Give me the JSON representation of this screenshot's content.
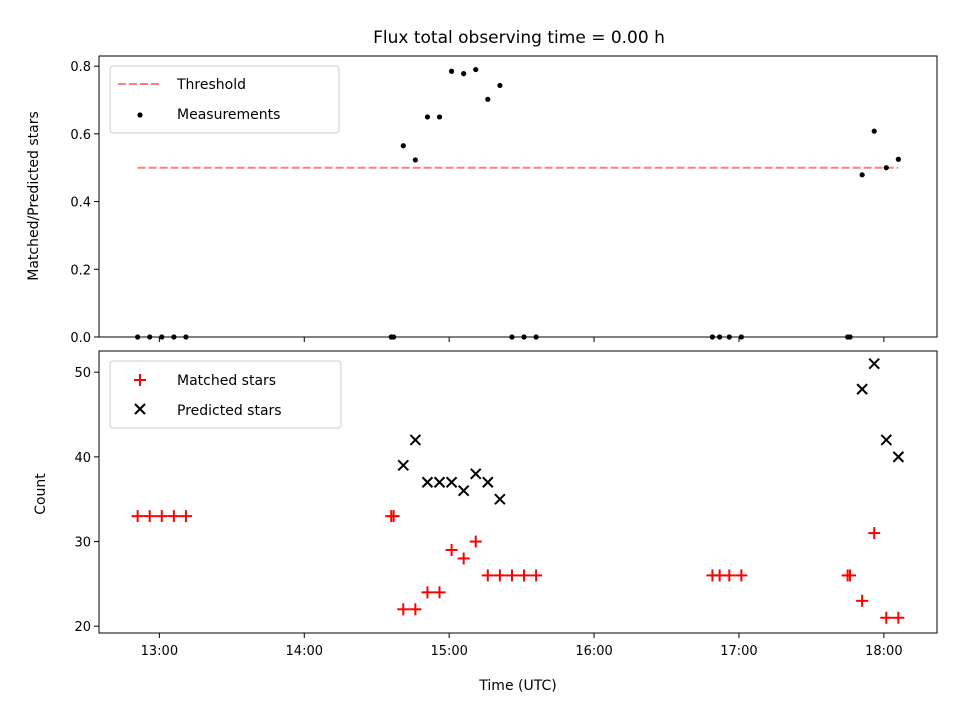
{
  "title": "Flux total observing time = 0.00 h",
  "xlabel": "Time (UTC)",
  "x_ticks": [
    "13:00",
    "14:00",
    "15:00",
    "16:00",
    "17:00",
    "18:00"
  ],
  "colors": {
    "threshold": "#ff7f7f",
    "measurement": "#000000",
    "matched": "#ff0000",
    "predicted": "#000000"
  },
  "chart_data": [
    {
      "type": "scatter",
      "ylabel": "Matched/Predicted stars",
      "y_ticks": [
        "0.0",
        "0.2",
        "0.4",
        "0.6",
        "0.8"
      ],
      "xlim": [
        "12:35",
        "18:22"
      ],
      "ylim": [
        0,
        0.83
      ],
      "legend_position": "top-left",
      "threshold": {
        "name": "Threshold",
        "y": 0.5,
        "x_range": [
          "12:51",
          "18:06"
        ]
      },
      "series": [
        {
          "name": "Measurements",
          "marker": "dot",
          "points": [
            [
              "12:51",
              0
            ],
            [
              "12:56",
              0
            ],
            [
              "13:01",
              0
            ],
            [
              "13:06",
              0
            ],
            [
              "13:11",
              0
            ],
            [
              "14:36",
              0
            ],
            [
              "14:37",
              0
            ],
            [
              "14:41",
              0.565
            ],
            [
              "14:46",
              0.523
            ],
            [
              "14:51",
              0.65
            ],
            [
              "14:56",
              0.65
            ],
            [
              "15:01",
              0.785
            ],
            [
              "15:06",
              0.778
            ],
            [
              "15:11",
              0.79
            ],
            [
              "15:16",
              0.702
            ],
            [
              "15:21",
              0.743
            ],
            [
              "15:26",
              0
            ],
            [
              "15:31",
              0
            ],
            [
              "15:36",
              0
            ],
            [
              "16:49",
              0
            ],
            [
              "16:52",
              0
            ],
            [
              "16:56",
              0
            ],
            [
              "17:01",
              0
            ],
            [
              "17:45",
              0
            ],
            [
              "17:46",
              0
            ],
            [
              "17:51",
              0.479
            ],
            [
              "17:56",
              0.608
            ],
            [
              "18:01",
              0.5
            ],
            [
              "18:06",
              0.525
            ]
          ]
        }
      ]
    },
    {
      "type": "scatter",
      "ylabel": "Count",
      "y_ticks": [
        "20",
        "30",
        "40",
        "50"
      ],
      "xlim": [
        "12:35",
        "18:22"
      ],
      "ylim": [
        19.2,
        52.5
      ],
      "legend_position": "top-left",
      "series": [
        {
          "name": "Matched stars",
          "marker": "plus",
          "points": [
            [
              "12:51",
              33
            ],
            [
              "12:56",
              33
            ],
            [
              "13:01",
              33
            ],
            [
              "13:06",
              33
            ],
            [
              "13:11",
              33
            ],
            [
              "14:36",
              33
            ],
            [
              "14:37",
              33
            ],
            [
              "14:41",
              22
            ],
            [
              "14:46",
              22
            ],
            [
              "14:51",
              24
            ],
            [
              "14:56",
              24
            ],
            [
              "15:01",
              29
            ],
            [
              "15:06",
              28
            ],
            [
              "15:11",
              30
            ],
            [
              "15:16",
              26
            ],
            [
              "15:21",
              26
            ],
            [
              "15:26",
              26
            ],
            [
              "15:31",
              26
            ],
            [
              "15:36",
              26
            ],
            [
              "16:49",
              26
            ],
            [
              "16:52",
              26
            ],
            [
              "16:56",
              26
            ],
            [
              "17:01",
              26
            ],
            [
              "17:45",
              26
            ],
            [
              "17:46",
              26
            ],
            [
              "17:51",
              23
            ],
            [
              "17:56",
              31
            ],
            [
              "18:01",
              21
            ],
            [
              "18:06",
              21
            ]
          ]
        },
        {
          "name": "Predicted stars",
          "marker": "x",
          "points": [
            [
              "14:41",
              39
            ],
            [
              "14:46",
              42
            ],
            [
              "14:51",
              37
            ],
            [
              "14:56",
              37
            ],
            [
              "15:01",
              37
            ],
            [
              "15:06",
              36
            ],
            [
              "15:11",
              38
            ],
            [
              "15:16",
              37
            ],
            [
              "15:21",
              35
            ],
            [
              "17:51",
              48
            ],
            [
              "17:56",
              51
            ],
            [
              "18:01",
              42
            ],
            [
              "18:06",
              40
            ]
          ]
        }
      ]
    }
  ]
}
